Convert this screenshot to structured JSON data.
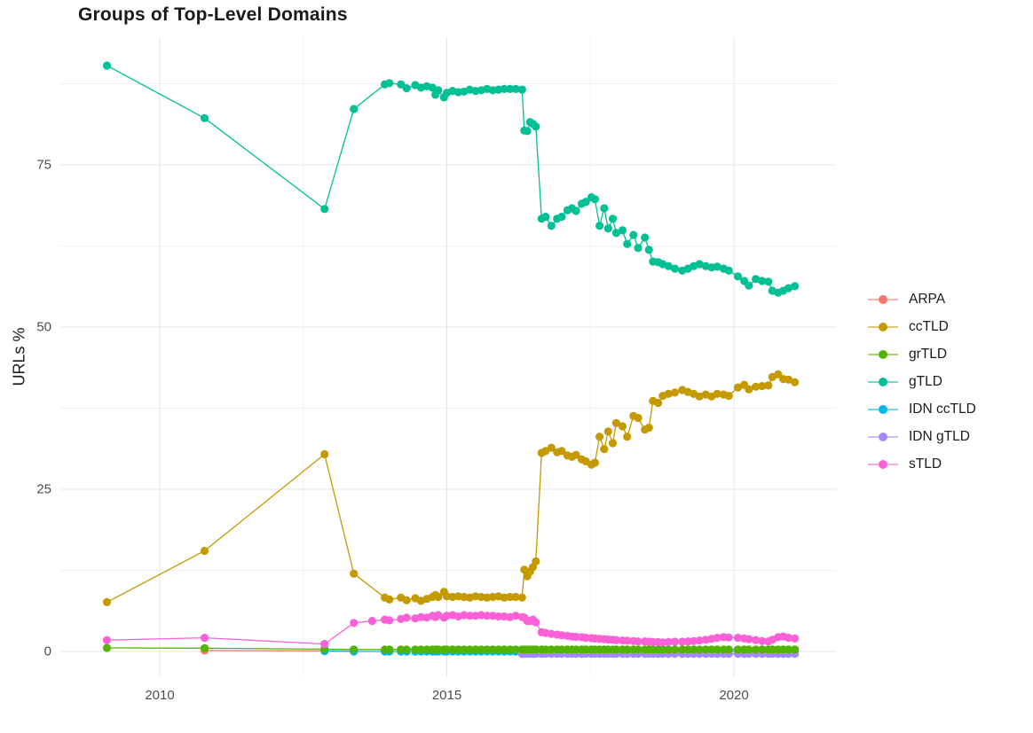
{
  "title": "Groups of Top-Level Domains",
  "y_axis_title": "URLs %",
  "chart_data": {
    "type": "line",
    "title": "Groups of Top-Level Domains",
    "xlabel": "",
    "ylabel": "URLs %",
    "grid": true,
    "legend_position": "right",
    "x_range": [
      2008.3,
      2021.8
    ],
    "y_range": [
      -3.8,
      94.7
    ],
    "x_ticks": [
      {
        "label": "2010",
        "year": 2010
      },
      {
        "label": "2015",
        "year": 2015
      },
      {
        "label": "2020",
        "year": 2020
      }
    ],
    "y_ticks": [
      {
        "label": "0",
        "value": 0
      },
      {
        "label": "25",
        "value": 25
      },
      {
        "label": "50",
        "value": 50
      },
      {
        "label": "75",
        "value": 75
      }
    ],
    "minor_x": [
      2012.5,
      2017.5
    ],
    "minor_y": [
      12.5,
      37.5,
      62.5,
      87.5
    ],
    "legend_order": [
      "ARPA",
      "ccTLD",
      "grTLD",
      "gTLD",
      "IDN ccTLD",
      "IDN gTLD",
      "sTLD"
    ],
    "dense_years": [
      2013.92,
      2014.0,
      2014.2,
      2014.3,
      2014.45,
      2014.55,
      2014.65,
      2014.75,
      2014.8,
      2014.85,
      2014.95,
      2015.0,
      2015.1,
      2015.2,
      2015.3,
      2015.4,
      2015.5,
      2015.6,
      2015.7,
      2015.8,
      2015.9,
      2016.0,
      2016.1,
      2016.2,
      2016.31,
      2016.35,
      2016.4,
      2016.45,
      2016.5,
      2016.55,
      2016.65,
      2016.72,
      2016.82,
      2016.92,
      2017.0,
      2017.1,
      2017.18,
      2017.25,
      2017.35,
      2017.42,
      2017.52,
      2017.58,
      2017.66,
      2017.74,
      2017.81,
      2017.89,
      2017.95,
      2018.06,
      2018.14,
      2018.25,
      2018.33,
      2018.45,
      2018.52,
      2018.59,
      2018.68,
      2018.76,
      2018.86,
      2018.97,
      2019.1,
      2019.2,
      2019.3,
      2019.4,
      2019.51,
      2019.61,
      2019.71,
      2019.82,
      2019.91,
      2020.07,
      2020.18,
      2020.26,
      2020.38,
      2020.49,
      2020.6,
      2020.67,
      2020.77,
      2020.86,
      2020.95,
      2021.06
    ],
    "series": [
      {
        "name": "ARPA",
        "color": "#F8766D",
        "points": [
          [
            2010.78,
            0.15
          ],
          [
            2012.87,
            0.1
          ],
          [
            2013.38,
            0.05
          ]
        ]
      },
      {
        "name": "IDN ccTLD",
        "color": "#00B6EB",
        "points": [
          [
            2012.87,
            0.05
          ],
          [
            2013.38,
            0.0
          ]
        ],
        "dense_value": 0.0,
        "dense_start": 2013.92
      },
      {
        "name": "IDN gTLD",
        "color": "#A58AFF",
        "points": [],
        "dense_value": -0.35,
        "dense_start": 2016.31
      },
      {
        "name": "grTLD",
        "color": "#53B400",
        "points": [
          [
            2009.08,
            0.55
          ],
          [
            2010.78,
            0.5
          ],
          [
            2012.87,
            0.35
          ],
          [
            2013.38,
            0.3
          ]
        ],
        "dense_value": 0.3,
        "dense_start": 2013.92
      },
      {
        "name": "ccTLD",
        "color": "#C49A00",
        "points": [
          [
            2009.08,
            7.6
          ],
          [
            2010.78,
            15.5
          ],
          [
            2012.87,
            30.4
          ],
          [
            2013.38,
            12.0
          ]
        ],
        "dense_values": [
          8.3,
          8.0,
          8.3,
          7.9,
          8.2,
          7.8,
          8.1,
          8.4,
          8.7,
          8.4,
          9.2,
          8.5,
          8.4,
          8.5,
          8.4,
          8.3,
          8.5,
          8.4,
          8.3,
          8.4,
          8.5,
          8.3,
          8.4,
          8.4,
          8.3,
          12.6,
          11.6,
          12.3,
          13.0,
          13.9,
          30.6,
          30.9,
          31.4,
          30.7,
          30.9,
          30.2,
          30.0,
          30.3,
          29.6,
          29.3,
          28.8,
          29.1,
          33.1,
          31.2,
          33.9,
          32.1,
          35.2,
          34.7,
          33.1,
          36.3,
          36.0,
          34.2,
          34.5,
          38.6,
          38.3,
          39.4,
          39.7,
          39.9,
          40.3,
          40.0,
          39.7,
          39.3,
          39.6,
          39.3,
          39.7,
          39.6,
          39.4,
          40.7,
          41.1,
          40.4,
          40.8,
          40.9,
          41.0,
          42.3,
          42.7,
          42.0,
          41.9,
          41.5
        ]
      },
      {
        "name": "gTLD",
        "color": "#00C094",
        "points": [
          [
            2009.08,
            90.3
          ],
          [
            2010.78,
            82.2
          ],
          [
            2012.87,
            68.2
          ],
          [
            2013.38,
            83.6
          ]
        ],
        "dense_values": [
          87.4,
          87.6,
          87.4,
          86.8,
          87.3,
          86.9,
          87.1,
          86.9,
          85.8,
          86.5,
          85.4,
          86.1,
          86.4,
          86.2,
          86.3,
          86.6,
          86.4,
          86.5,
          86.7,
          86.5,
          86.6,
          86.7,
          86.7,
          86.7,
          86.6,
          80.3,
          80.2,
          81.6,
          81.3,
          80.9,
          66.7,
          67.0,
          65.6,
          66.7,
          67.0,
          68.0,
          68.3,
          67.9,
          69.0,
          69.3,
          70.0,
          69.7,
          65.6,
          68.3,
          65.2,
          66.7,
          64.5,
          64.9,
          62.8,
          64.2,
          62.2,
          63.8,
          61.9,
          60.1,
          60.0,
          59.7,
          59.4,
          59.0,
          58.7,
          59.0,
          59.4,
          59.7,
          59.4,
          59.2,
          59.3,
          59.0,
          58.7,
          57.8,
          57.1,
          56.4,
          57.4,
          57.1,
          57.0,
          55.6,
          55.3,
          55.6,
          56.0,
          56.3
        ]
      },
      {
        "name": "sTLD",
        "color": "#FB61D7",
        "points": [
          [
            2009.08,
            1.75
          ],
          [
            2010.78,
            2.1
          ],
          [
            2012.87,
            1.15
          ],
          [
            2013.38,
            4.4
          ],
          [
            2013.7,
            4.7
          ]
        ],
        "dense_values": [
          4.9,
          4.8,
          5.0,
          5.2,
          5.1,
          5.3,
          5.2,
          5.5,
          5.3,
          5.6,
          5.2,
          5.5,
          5.6,
          5.4,
          5.6,
          5.5,
          5.5,
          5.6,
          5.5,
          5.5,
          5.4,
          5.4,
          5.3,
          5.5,
          5.3,
          5.2,
          4.7,
          4.7,
          4.9,
          4.5,
          2.95,
          2.85,
          2.7,
          2.6,
          2.5,
          2.4,
          2.3,
          2.25,
          2.2,
          2.1,
          2.05,
          2.0,
          1.95,
          1.9,
          1.85,
          1.8,
          1.75,
          1.7,
          1.65,
          1.6,
          1.55,
          1.55,
          1.5,
          1.45,
          1.45,
          1.4,
          1.45,
          1.5,
          1.5,
          1.55,
          1.6,
          1.7,
          1.8,
          1.95,
          2.1,
          2.2,
          2.15,
          2.1,
          2.0,
          1.9,
          1.75,
          1.6,
          1.55,
          1.8,
          2.2,
          2.3,
          2.1,
          2.0
        ]
      }
    ]
  }
}
